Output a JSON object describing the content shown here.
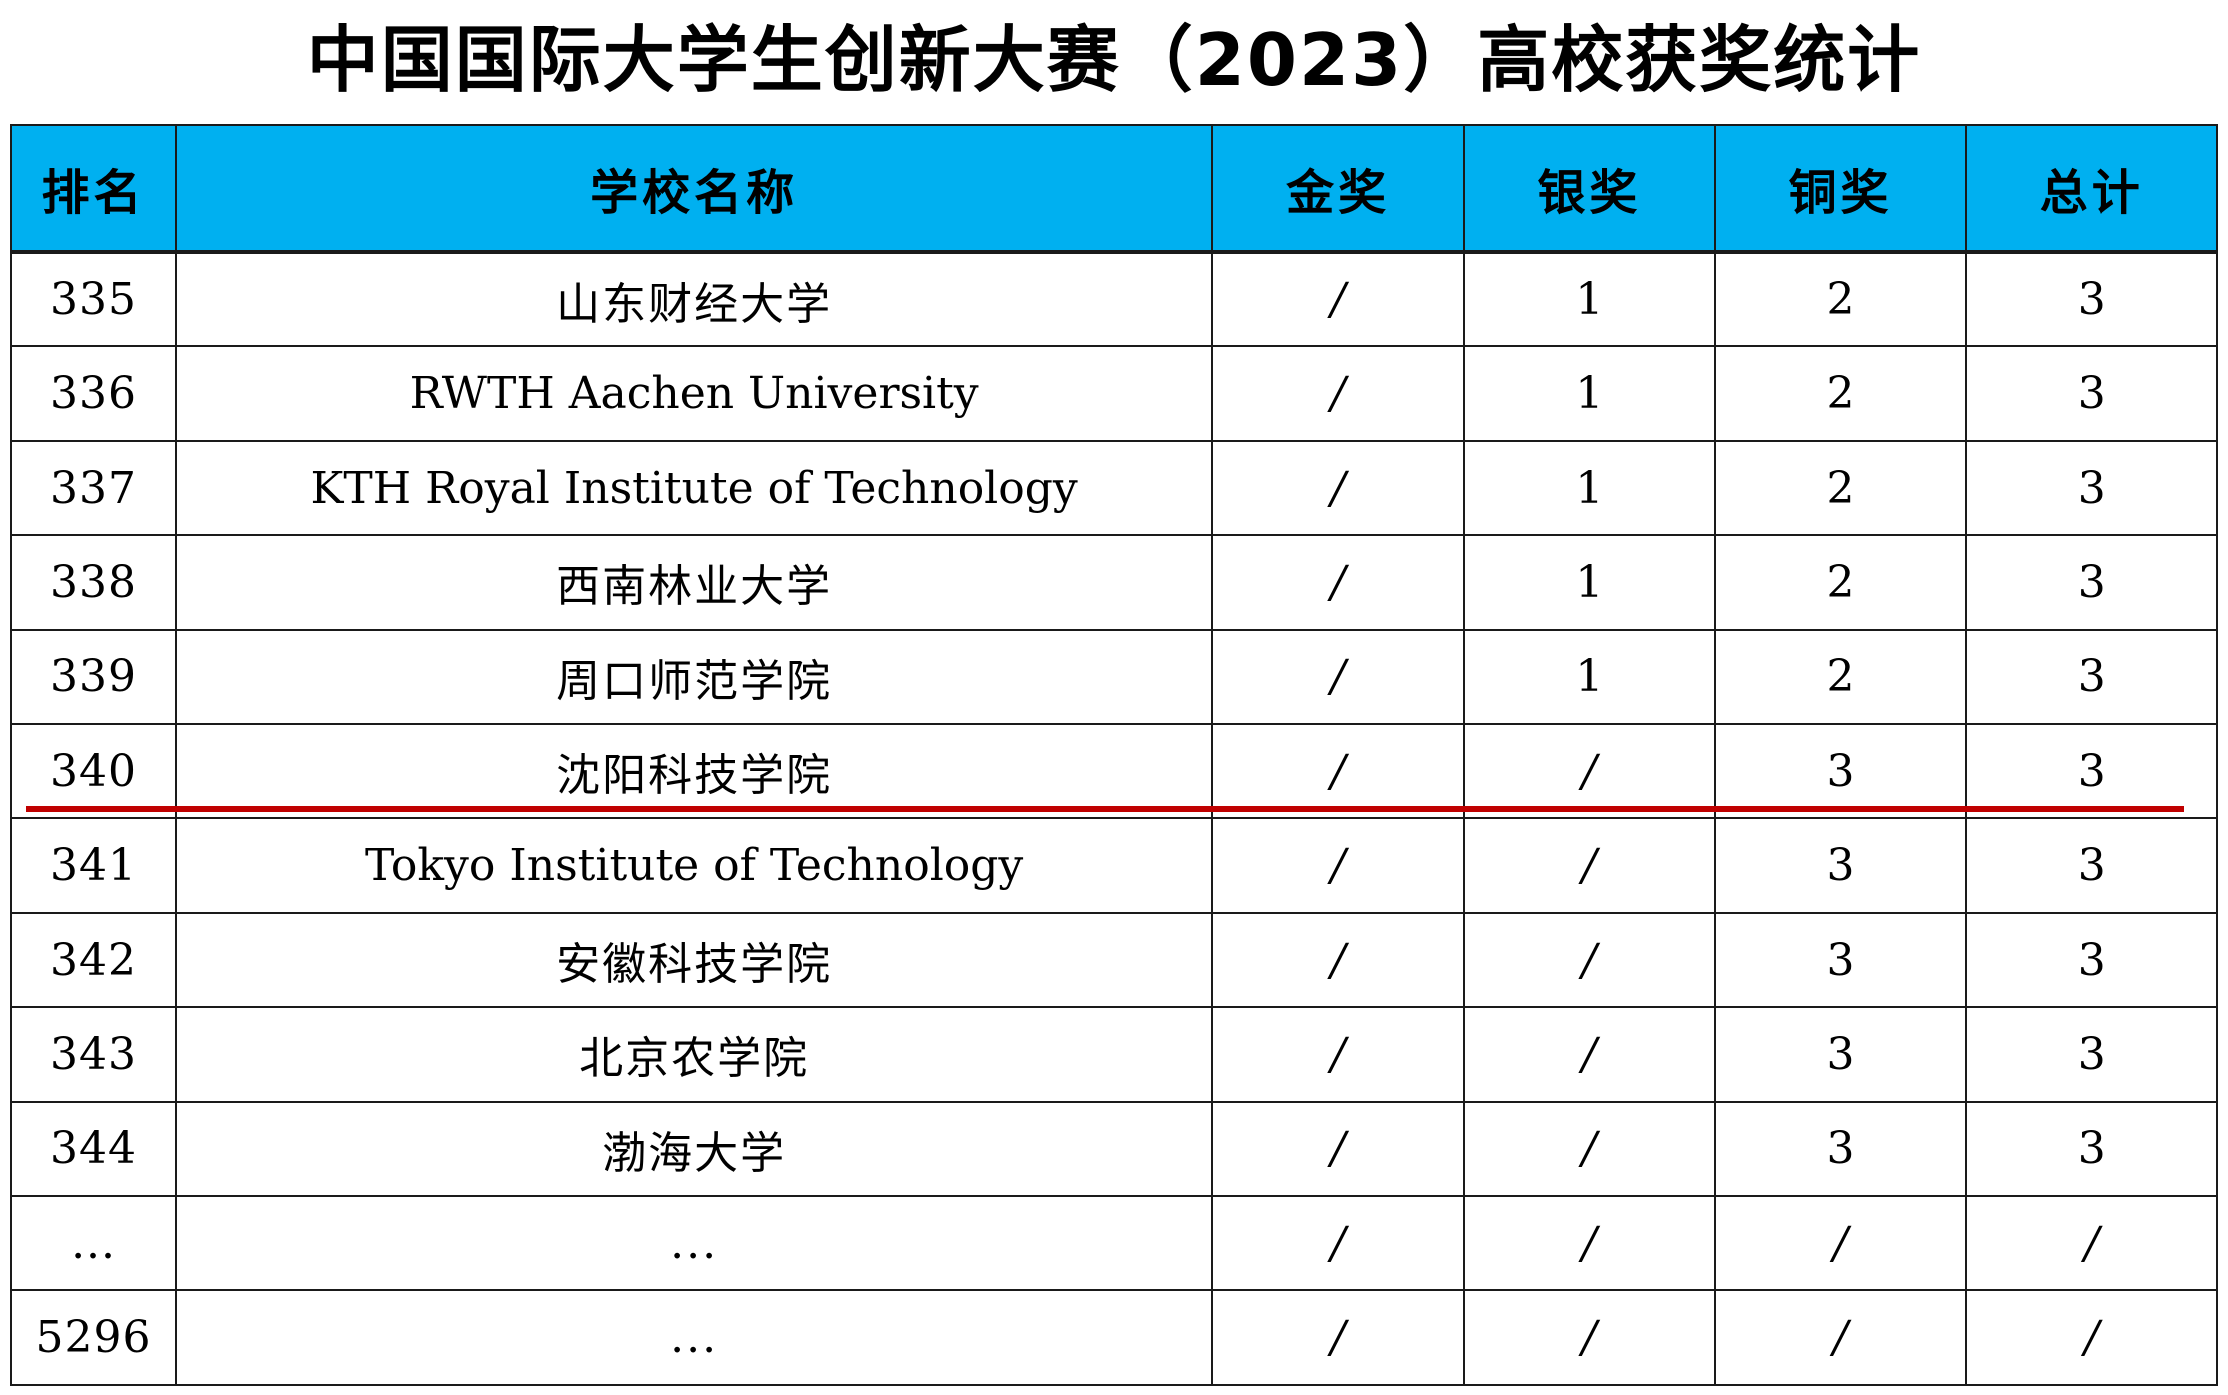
{
  "title": "中国国际大学生创新大赛（2023）高校获奖统计",
  "headers": [
    "排名",
    "学校名称",
    "金奖",
    "银奖",
    "铜奖",
    "总计"
  ],
  "rows": [
    {
      "rank": "335",
      "school": "山东财经大学",
      "gold": "/",
      "silver": "1",
      "bronze": "2",
      "total": "3"
    },
    {
      "rank": "336",
      "school": "RWTH Aachen University",
      "gold": "/",
      "silver": "1",
      "bronze": "2",
      "total": "3"
    },
    {
      "rank": "337",
      "school": "KTH Royal Institute of Technology",
      "gold": "/",
      "silver": "1",
      "bronze": "2",
      "total": "3"
    },
    {
      "rank": "338",
      "school": "西南林业大学",
      "gold": "/",
      "silver": "1",
      "bronze": "2",
      "total": "3"
    },
    {
      "rank": "339",
      "school": "周口师范学院",
      "gold": "/",
      "silver": "1",
      "bronze": "2",
      "total": "3"
    },
    {
      "rank": "340",
      "school": "沈阳科技学院",
      "gold": "/",
      "silver": "/",
      "bronze": "3",
      "total": "3"
    },
    {
      "rank": "341",
      "school": "Tokyo Institute of Technology",
      "gold": "/",
      "silver": "/",
      "bronze": "3",
      "total": "3"
    },
    {
      "rank": "342",
      "school": "安徽科技学院",
      "gold": "/",
      "silver": "/",
      "bronze": "3",
      "total": "3"
    },
    {
      "rank": "343",
      "school": "北京农学院",
      "gold": "/",
      "silver": "/",
      "bronze": "3",
      "total": "3"
    },
    {
      "rank": "344",
      "school": "渤海大学",
      "gold": "/",
      "silver": "/",
      "bronze": "3",
      "total": "3"
    },
    {
      "rank": "...",
      "school": "...",
      "gold": "/",
      "silver": "/",
      "bronze": "/",
      "total": "/"
    },
    {
      "rank": "5296",
      "school": "...",
      "gold": "/",
      "silver": "/",
      "bronze": "/",
      "total": "/"
    }
  ],
  "colors": {
    "header_bg": "#00b0f0",
    "highlight_line": "#c00000",
    "border": "#1a1a1a"
  }
}
